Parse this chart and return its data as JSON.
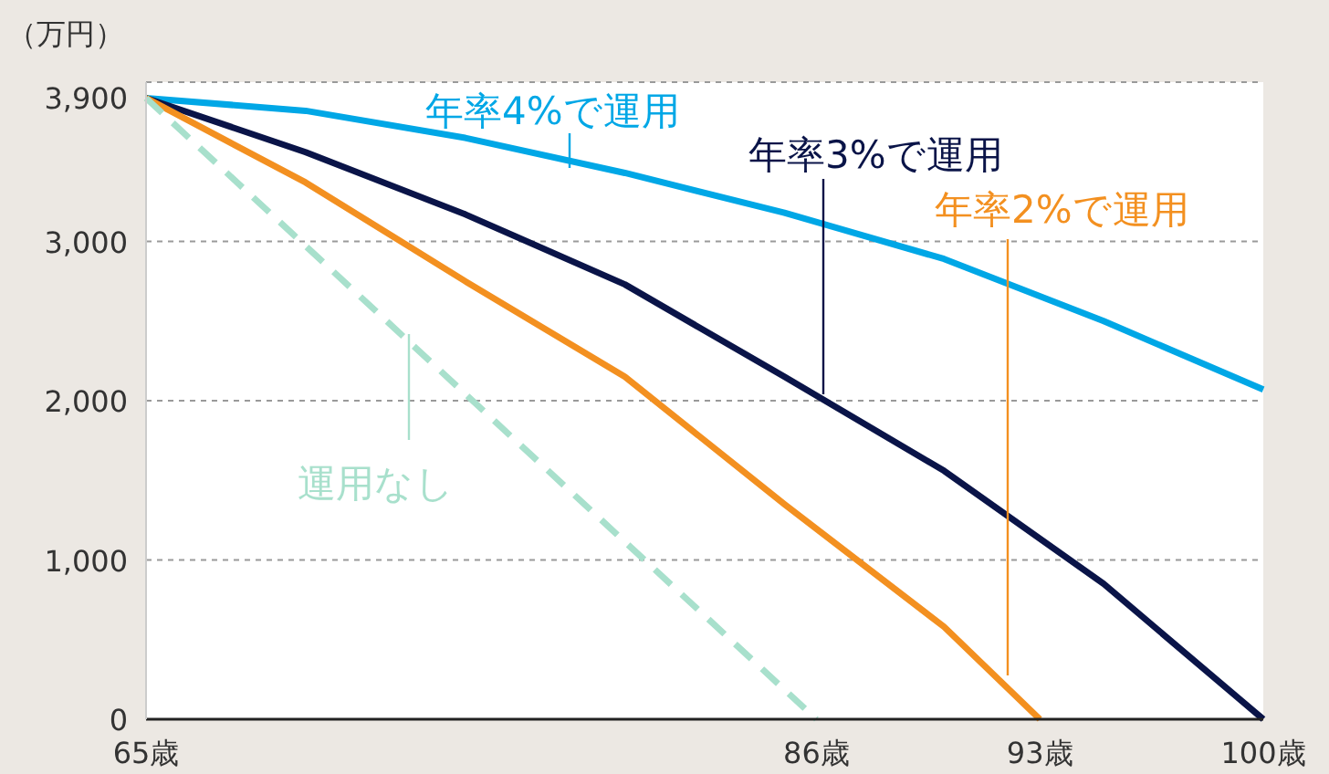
{
  "chart_data": {
    "type": "line",
    "ylabel": "（万円）",
    "xlim": [
      65,
      100
    ],
    "ylim": [
      0,
      4000
    ],
    "xticks": [
      {
        "value": 65,
        "label": "65歳"
      },
      {
        "value": 86,
        "label": "86歳"
      },
      {
        "value": 93,
        "label": "93歳"
      },
      {
        "value": 100,
        "label": "100歳"
      }
    ],
    "yticks": [
      0,
      {
        "value": 1000,
        "label": "1,000"
      },
      {
        "value": 2000,
        "label": "2,000"
      },
      {
        "value": 3000,
        "label": "3,000"
      },
      {
        "value": 3900,
        "label": "3,900"
      },
      {
        "value": 4000,
        "label": null
      }
    ],
    "grid": "y",
    "series": [
      {
        "name": "年率4%で運用",
        "color": "#00a7e6",
        "line_style": "solid",
        "x": [
          65,
          70,
          75,
          80,
          85,
          90,
          95,
          100
        ],
        "values": [
          3900,
          3820,
          3650,
          3430,
          3180,
          2890,
          2500,
          2070
        ]
      },
      {
        "name": "年率3%で運用",
        "color": "#0a1448",
        "line_style": "solid",
        "x": [
          65,
          70,
          75,
          80,
          85,
          90,
          95,
          100
        ],
        "values": [
          3900,
          3560,
          3170,
          2730,
          2150,
          1560,
          850,
          0
        ]
      },
      {
        "name": "年率2%で運用",
        "color": "#f39020",
        "line_style": "solid",
        "x": [
          65,
          70,
          75,
          80,
          85,
          90,
          93
        ],
        "values": [
          3900,
          3370,
          2750,
          2150,
          1350,
          580,
          0
        ]
      },
      {
        "name": "運用なし",
        "color": "#a8e0cc",
        "line_style": "dashed",
        "x": [
          65,
          86
        ],
        "values": [
          3900,
          0
        ]
      }
    ]
  }
}
